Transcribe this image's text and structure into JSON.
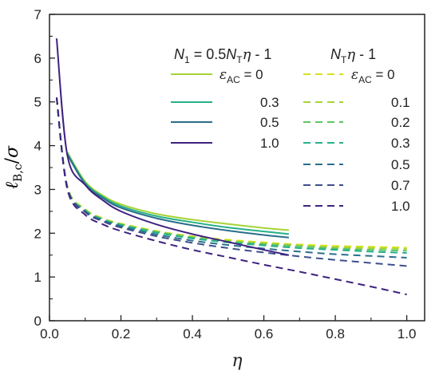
{
  "chart_data": {
    "type": "line",
    "xlabel": "η",
    "ylabel": "ℓ_B,c/σ",
    "xlim": [
      0,
      1.05
    ],
    "ylim": [
      0,
      7
    ],
    "x_ticks": [
      "0.0",
      "0.2",
      "0.4",
      "0.6",
      "0.8",
      "1.0"
    ],
    "y_ticks": [
      "0",
      "1",
      "2",
      "3",
      "4",
      "5",
      "6",
      "7"
    ],
    "legend_group_solid": {
      "title_var": "N",
      "title_sub": "1",
      "title_rest": " = 0.5",
      "title_var2": "N",
      "title_sub2": "T",
      "title_eta": "η",
      "title_tail": " - 1",
      "entry_prefix": "ε",
      "entry_sub": "AC",
      "entries": [
        "= 0",
        "0.3",
        "0.5",
        "1.0"
      ]
    },
    "legend_group_dashed": {
      "title_var": "N",
      "title_sub": "T",
      "title_eta": "η",
      "title_tail": " - 1",
      "entry_prefix": "ε",
      "entry_sub": "AC",
      "entries": [
        "= 0",
        "0.1",
        "0.2",
        "0.3",
        "0.5",
        "0.7",
        "1.0"
      ]
    },
    "series_solid": [
      {
        "name": "0",
        "color": "#a6d435",
        "x": [
          0.05,
          0.1,
          0.15,
          0.2,
          0.3,
          0.4,
          0.5,
          0.6,
          0.67
        ],
        "y": [
          3.85,
          3.18,
          2.86,
          2.66,
          2.44,
          2.31,
          2.21,
          2.12,
          2.07
        ]
      },
      {
        "name": "0.3",
        "color": "#26b089",
        "x": [
          0.05,
          0.1,
          0.15,
          0.2,
          0.3,
          0.4,
          0.5,
          0.6,
          0.67
        ],
        "y": [
          3.82,
          3.15,
          2.83,
          2.62,
          2.39,
          2.25,
          2.13,
          2.04,
          1.98
        ]
      },
      {
        "name": "0.5",
        "color": "#2a6e8c",
        "x": [
          0.05,
          0.1,
          0.15,
          0.2,
          0.3,
          0.4,
          0.5,
          0.6,
          0.67
        ],
        "y": [
          3.8,
          3.12,
          2.8,
          2.58,
          2.34,
          2.18,
          2.06,
          1.96,
          1.9
        ]
      },
      {
        "name": "1.0",
        "color": "#3f2280",
        "x": [
          0.02,
          0.05,
          0.1,
          0.15,
          0.2,
          0.3,
          0.4,
          0.5,
          0.6,
          0.67
        ],
        "y": [
          6.45,
          3.78,
          3.1,
          2.75,
          2.5,
          2.2,
          1.98,
          1.8,
          1.62,
          1.5
        ]
      }
    ],
    "series_dashed": [
      {
        "name": "0",
        "color": "#d7e219",
        "x": [
          0.02,
          0.05,
          0.1,
          0.15,
          0.2,
          0.3,
          0.4,
          0.5,
          0.6,
          0.7,
          0.8,
          0.9,
          1.0
        ],
        "y": [
          5.1,
          3.08,
          2.55,
          2.34,
          2.22,
          2.05,
          1.93,
          1.85,
          1.79,
          1.74,
          1.71,
          1.69,
          1.67
        ]
      },
      {
        "name": "0.1",
        "color": "#a6d435",
        "x": [
          0.02,
          0.05,
          0.1,
          0.15,
          0.2,
          0.3,
          0.4,
          0.5,
          0.6,
          0.7,
          0.8,
          0.9,
          1.0
        ],
        "y": [
          5.1,
          3.07,
          2.54,
          2.33,
          2.21,
          2.04,
          1.92,
          1.83,
          1.77,
          1.72,
          1.68,
          1.66,
          1.64
        ]
      },
      {
        "name": "0.2",
        "color": "#5cc563",
        "x": [
          0.02,
          0.05,
          0.1,
          0.15,
          0.2,
          0.3,
          0.4,
          0.5,
          0.6,
          0.7,
          0.8,
          0.9,
          1.0
        ],
        "y": [
          5.1,
          3.06,
          2.53,
          2.32,
          2.2,
          2.03,
          1.9,
          1.81,
          1.75,
          1.7,
          1.65,
          1.62,
          1.6
        ]
      },
      {
        "name": "0.3",
        "color": "#26b089",
        "x": [
          0.02,
          0.05,
          0.1,
          0.15,
          0.2,
          0.3,
          0.4,
          0.5,
          0.6,
          0.7,
          0.8,
          0.9,
          1.0
        ],
        "y": [
          5.1,
          3.05,
          2.52,
          2.31,
          2.19,
          2.01,
          1.88,
          1.79,
          1.72,
          1.66,
          1.62,
          1.58,
          1.55
        ]
      },
      {
        "name": "0.5",
        "color": "#2a6e8c",
        "x": [
          0.02,
          0.05,
          0.1,
          0.15,
          0.2,
          0.3,
          0.4,
          0.5,
          0.6,
          0.7,
          0.8,
          0.9,
          1.0
        ],
        "y": [
          5.1,
          3.04,
          2.5,
          2.29,
          2.16,
          1.97,
          1.83,
          1.73,
          1.65,
          1.58,
          1.52,
          1.48,
          1.44
        ]
      },
      {
        "name": "0.7",
        "color": "#3b4f8a",
        "x": [
          0.02,
          0.05,
          0.1,
          0.15,
          0.2,
          0.3,
          0.4,
          0.5,
          0.6,
          0.7,
          0.8,
          0.9,
          1.0
        ],
        "y": [
          5.1,
          3.03,
          2.48,
          2.27,
          2.13,
          1.93,
          1.78,
          1.66,
          1.56,
          1.47,
          1.39,
          1.32,
          1.25
        ]
      },
      {
        "name": "1.0",
        "color": "#3f2280",
        "x": [
          0.02,
          0.05,
          0.1,
          0.15,
          0.2,
          0.3,
          0.4,
          0.5,
          0.6,
          0.7,
          0.8,
          0.9,
          1.0
        ],
        "y": [
          5.1,
          3.0,
          2.42,
          2.2,
          2.05,
          1.82,
          1.62,
          1.45,
          1.28,
          1.12,
          0.95,
          0.78,
          0.6
        ]
      }
    ]
  }
}
